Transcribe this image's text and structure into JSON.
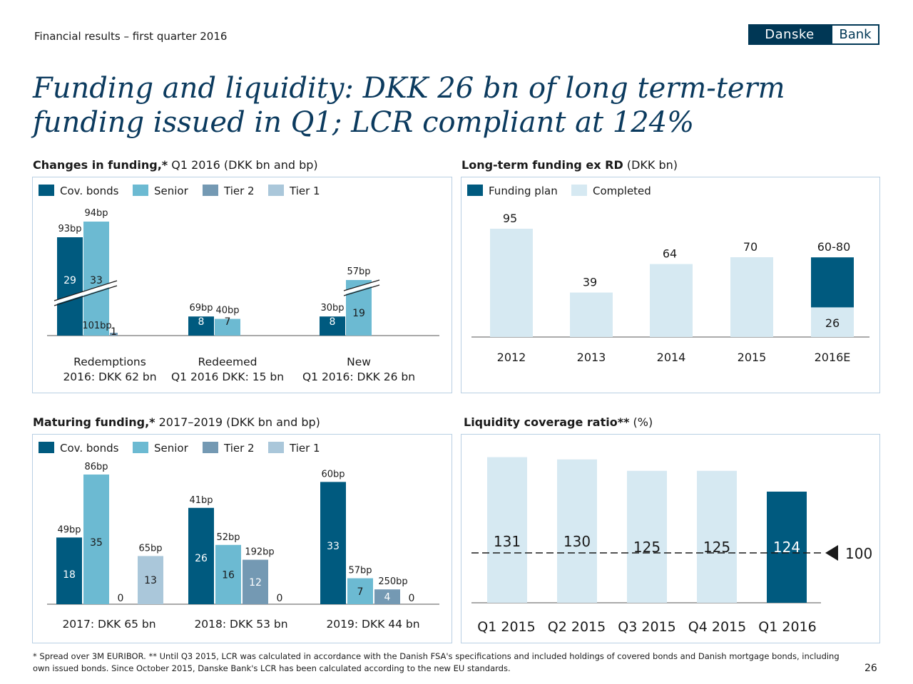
{
  "header": {
    "subtitle": "Financial results – first quarter 2016",
    "logo_left": "Danske",
    "logo_right": "Bank"
  },
  "title": "Funding and liquidity: DKK 26 bn of long term-term funding issued in Q1; LCR compliant at 124%",
  "colors": {
    "cov_bonds": "#005a7f",
    "senior": "#6cbad2",
    "tier2": "#7499b3",
    "tier1": "#aac7da",
    "completed": "#d6e9f2",
    "funding_plan": "#005a7f",
    "title_blue": "#0b3a5e"
  },
  "panels": {
    "changes": {
      "title_bold": "Changes in funding,*",
      "title_rest": " Q1 2016 (DKK bn and bp)"
    },
    "longterm": {
      "title_bold": "Long-term funding ex RD",
      "title_rest": " (DKK bn)"
    },
    "maturing": {
      "title_bold": "Maturing funding,*",
      "title_rest": " 2017–2019 (DKK bn and bp)"
    },
    "lcr": {
      "title_bold": "Liquidity coverage ratio**",
      "title_rest": " (%)"
    }
  },
  "chart_data": [
    {
      "id": "changes",
      "type": "bar",
      "legend": [
        "Cov. bonds",
        "Senior",
        "Tier 2",
        "Tier 1"
      ],
      "groups": [
        {
          "label_line1": "Redemptions",
          "label_line2": "2016: DKK 62 bn",
          "bars": [
            {
              "series": "Cov. bonds",
              "value": 29,
              "value_label": "29",
              "spread": "93bp",
              "broken": true
            },
            {
              "series": "Senior",
              "value": 33,
              "value_label": "33",
              "spread": "94bp",
              "broken": true
            },
            {
              "series": "Tier 2",
              "value": 1,
              "value_label": "1",
              "spread": "101bp"
            },
            {
              "series": "Tier 1",
              "value": 0,
              "value_label": "",
              "spread": ""
            }
          ]
        },
        {
          "label_line1": "Redeemed",
          "label_line2": "Q1 2016 DKK: 15 bn",
          "bars": [
            {
              "series": "Cov. bonds",
              "value": 8,
              "value_label": "8",
              "spread": "69bp"
            },
            {
              "series": "Senior",
              "value": 7,
              "value_label": "7",
              "spread": "40bp"
            }
          ]
        },
        {
          "label_line1": "New",
          "label_line2": "Q1 2016: DKK 26 bn",
          "bars": [
            {
              "series": "Cov. bonds",
              "value": 8,
              "value_label": "8",
              "spread": "30bp"
            },
            {
              "series": "Senior",
              "value": 19,
              "value_label": "19",
              "spread": "57bp",
              "broken": true
            }
          ]
        }
      ]
    },
    {
      "id": "longterm",
      "type": "bar",
      "legend": [
        "Funding plan",
        "Completed"
      ],
      "categories": [
        "2012",
        "2013",
        "2014",
        "2015",
        "2016E"
      ],
      "completed": [
        95,
        39,
        64,
        70,
        26
      ],
      "funding_plan": [
        0,
        0,
        0,
        0,
        54
      ],
      "value_labels": [
        "95",
        "39",
        "64",
        "70",
        "60-80"
      ],
      "inner_label_2016E": "26"
    },
    {
      "id": "maturing",
      "type": "bar",
      "legend": [
        "Cov. bonds",
        "Senior",
        "Tier 2",
        "Tier 1"
      ],
      "groups": [
        {
          "label": "2017: DKK 65 bn",
          "bars": [
            {
              "series": "Cov. bonds",
              "value": 18,
              "value_label": "18",
              "spread": "49bp"
            },
            {
              "series": "Senior",
              "value": 35,
              "value_label": "35",
              "spread": "86bp"
            },
            {
              "series": "Tier 2",
              "value": 0,
              "value_label": "0",
              "spread": ""
            },
            {
              "series": "Tier 1",
              "value": 13,
              "value_label": "13",
              "spread": "65bp"
            }
          ]
        },
        {
          "label": "2018: DKK 53 bn",
          "bars": [
            {
              "series": "Cov. bonds",
              "value": 26,
              "value_label": "26",
              "spread": "41bp"
            },
            {
              "series": "Senior",
              "value": 16,
              "value_label": "16",
              "spread": "52bp"
            },
            {
              "series": "Tier 2",
              "value": 12,
              "value_label": "12",
              "spread": "192bp"
            },
            {
              "series": "Tier 1",
              "value": 0,
              "value_label": "0",
              "spread": ""
            }
          ]
        },
        {
          "label": "2019: DKK 44 bn",
          "bars": [
            {
              "series": "Cov. bonds",
              "value": 33,
              "value_label": "33",
              "spread": "60bp"
            },
            {
              "series": "Senior",
              "value": 7,
              "value_label": "7",
              "spread": "57bp"
            },
            {
              "series": "Tier 2",
              "value": 4,
              "value_label": "4",
              "spread": "250bp"
            },
            {
              "series": "Tier 1",
              "value": 0,
              "value_label": "0",
              "spread": ""
            }
          ]
        }
      ]
    },
    {
      "id": "lcr",
      "type": "bar",
      "categories": [
        "Q1 2015",
        "Q2 2015",
        "Q3 2015",
        "Q4 2015",
        "Q1 2016"
      ],
      "values": [
        131,
        130,
        125,
        125,
        124
      ],
      "value_labels": [
        "131",
        "130",
        "125",
        "125",
        "124"
      ],
      "threshold": 100,
      "threshold_label": "100"
    }
  ],
  "footnote": "* Spread over 3M EURIBOR. ** Until Q3 2015, LCR was calculated in accordance with the Danish FSA's specifications and included holdings of covered bonds and Danish mortgage bonds, including own issued bonds. Since October 2015, Danske Bank's LCR has been calculated according to the new EU standards.",
  "page_number": "26"
}
